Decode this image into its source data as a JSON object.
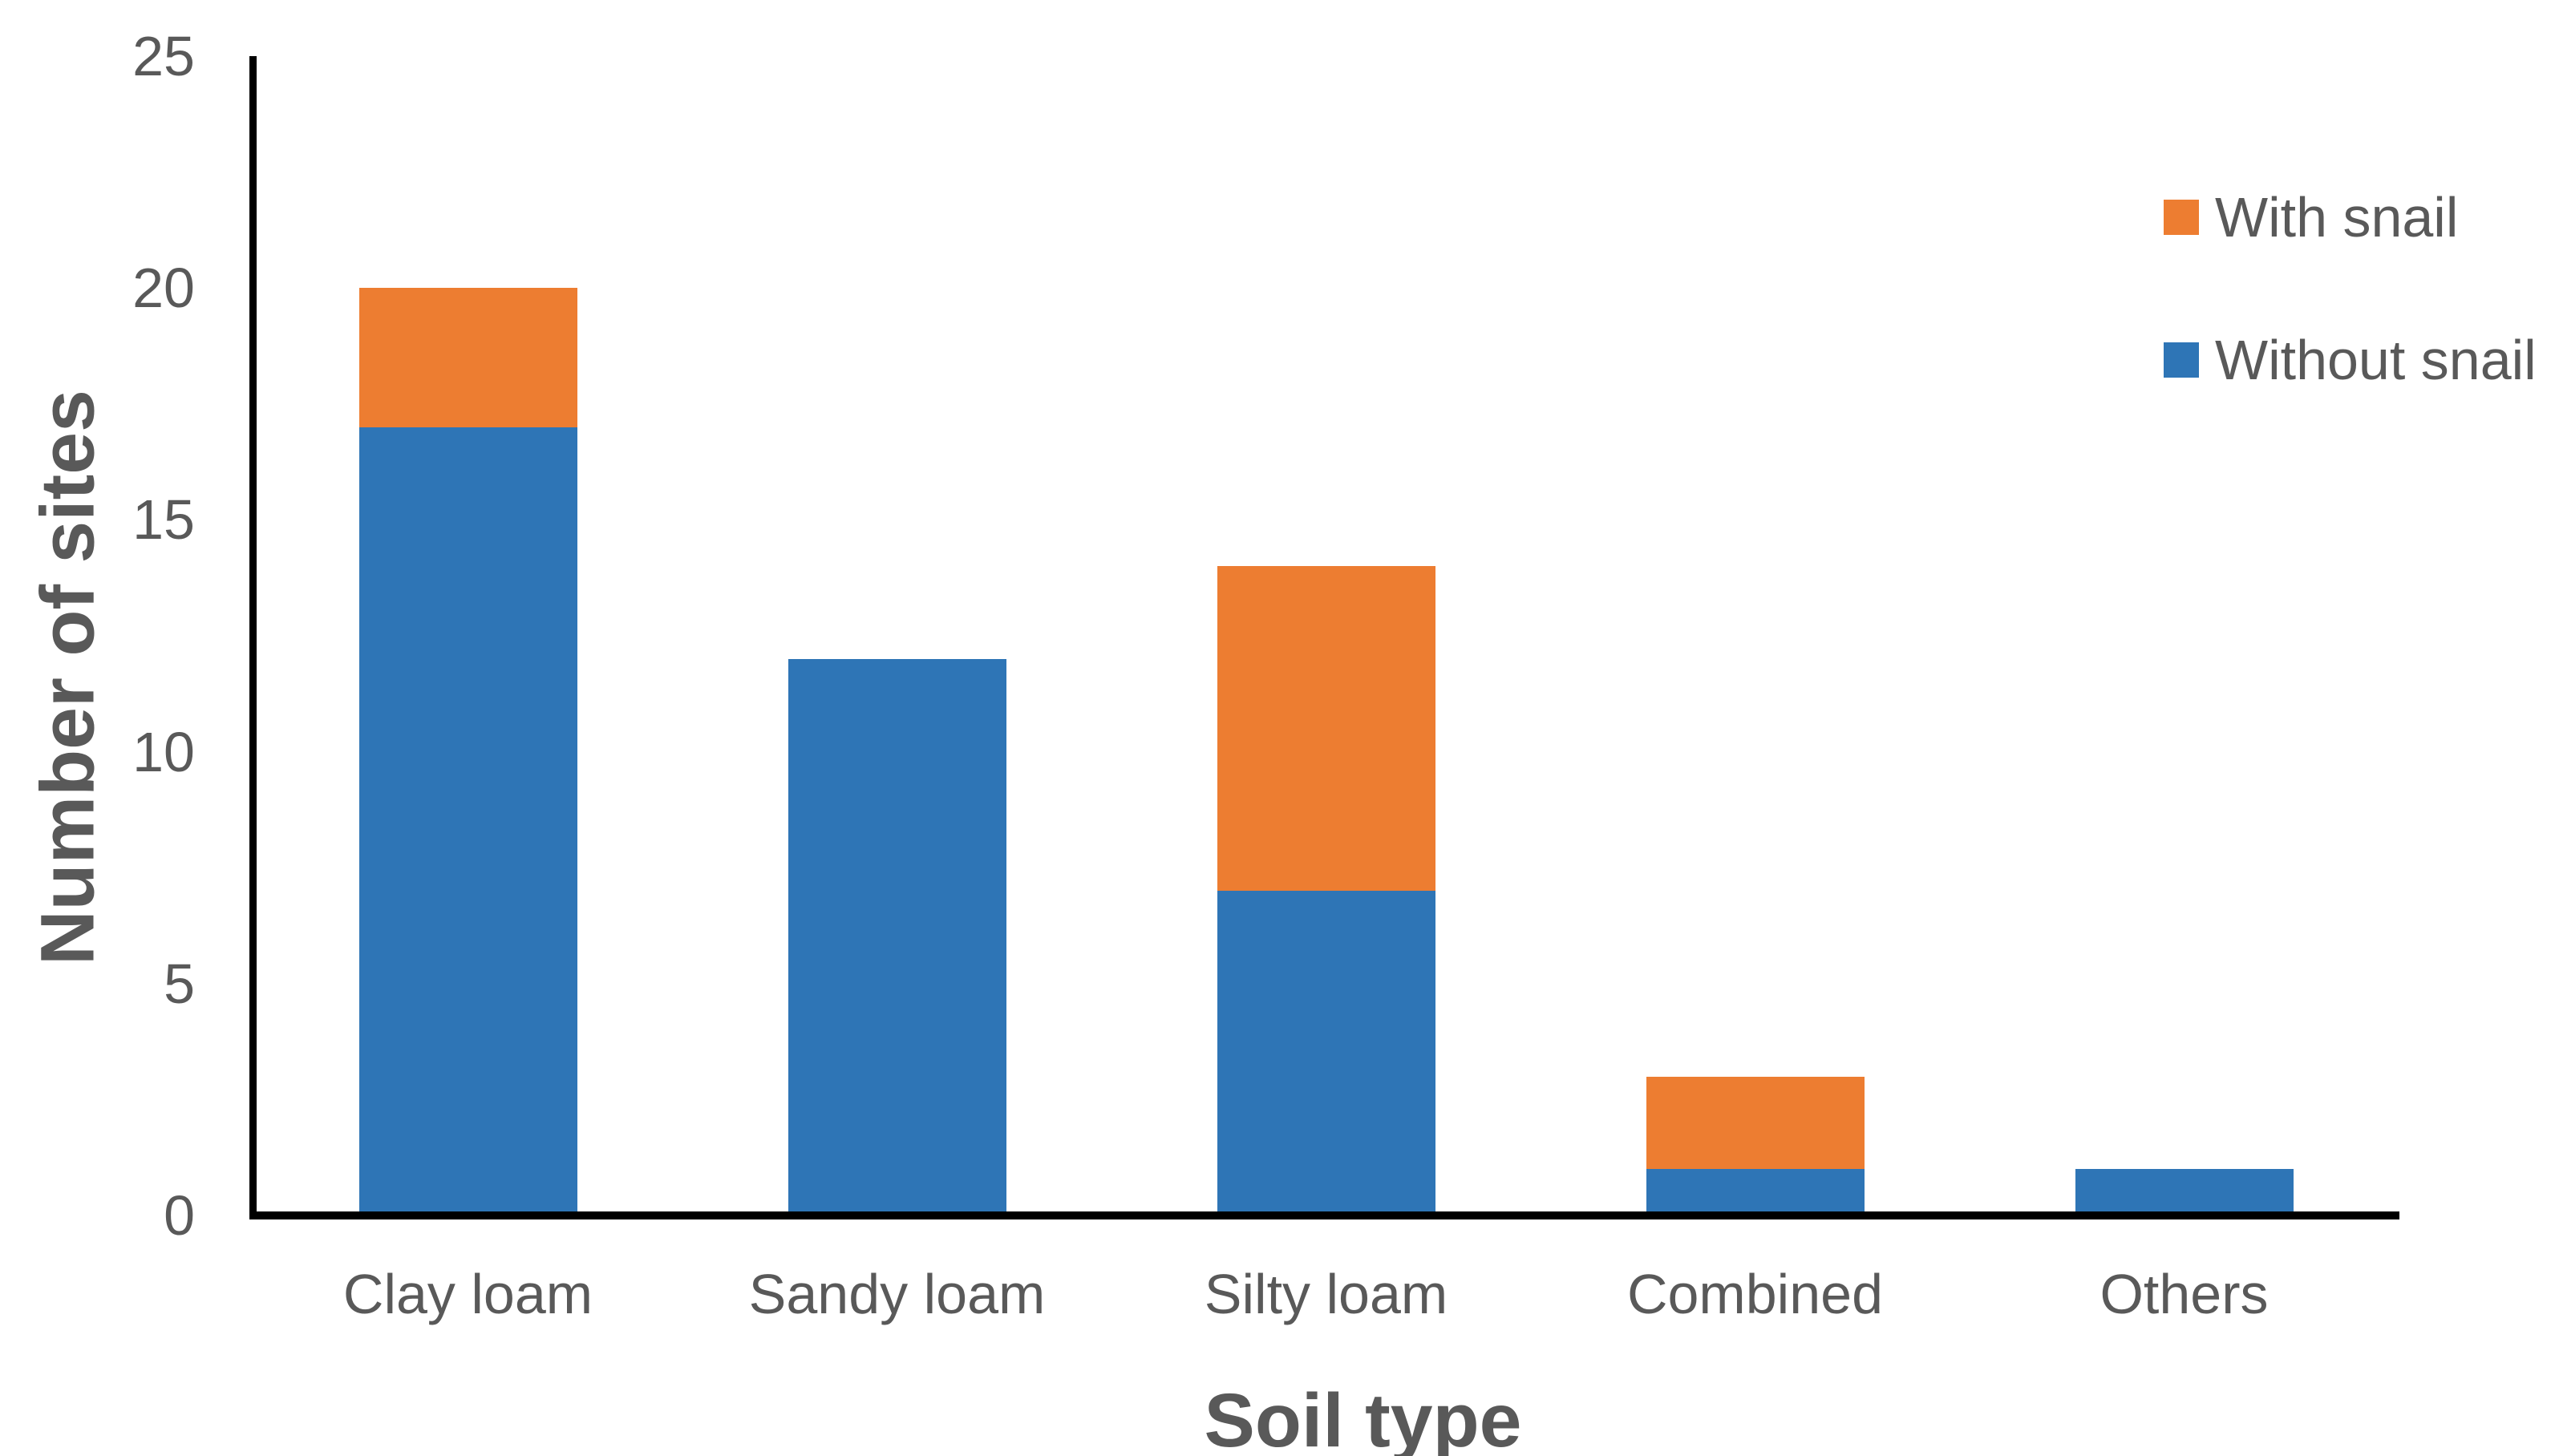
{
  "chart_data": {
    "type": "bar",
    "stacked": true,
    "title": "",
    "categories": [
      "Clay loam",
      "Sandy loam",
      "Silty loam",
      "Combined",
      "Others"
    ],
    "series": [
      {
        "name": "Without snail",
        "color": "#2E75B6",
        "values": [
          17,
          12,
          7,
          1,
          1
        ]
      },
      {
        "name": "With snail",
        "color": "#ED7D31",
        "values": [
          3,
          0,
          7,
          2,
          0
        ]
      }
    ],
    "totals": [
      20,
      12,
      14,
      3,
      1
    ],
    "legend": [
      {
        "label": "With snail",
        "color": "#ED7D31"
      },
      {
        "label": "Without snail",
        "color": "#2E75B6"
      }
    ],
    "legend_position": "top-right",
    "xlabel": "Soil type",
    "ylabel": "Number of sites",
    "ylim": [
      0,
      25
    ],
    "yticks": [
      0,
      5,
      10,
      15,
      20,
      25
    ],
    "grid": false,
    "axis_color": "#000000",
    "label_color": "#595959",
    "background_color": "#FFFFFF"
  }
}
